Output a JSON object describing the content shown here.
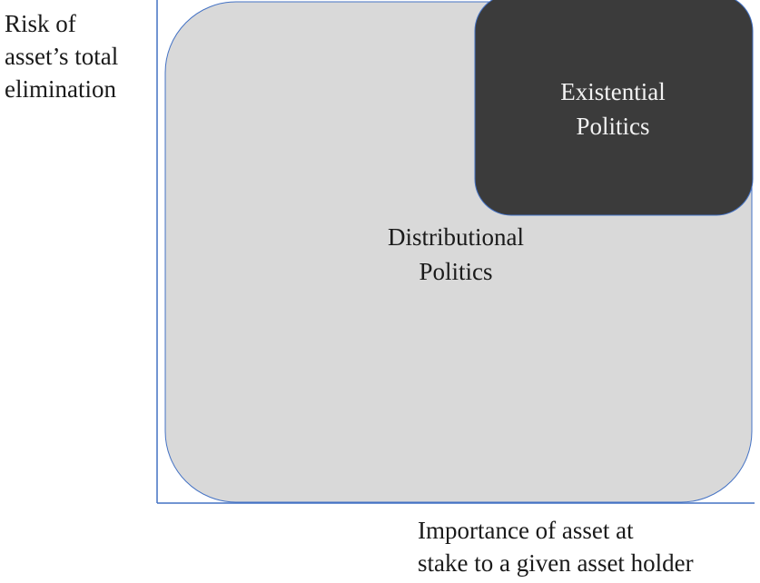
{
  "axes": {
    "y_label_lines": [
      "Risk of",
      "asset’s total",
      "elimination"
    ],
    "x_label_lines": [
      "Importance of asset at",
      "stake to a given asset holder"
    ]
  },
  "regions": {
    "distributional": {
      "lines": [
        "Distributional",
        "Politics"
      ],
      "fill": "#d9d9d9",
      "stroke": "#4472c4"
    },
    "existential": {
      "lines": [
        "Existential",
        "Politics"
      ],
      "fill": "#3b3b3b",
      "stroke": "#4472c4"
    }
  },
  "colors": {
    "axis": "#4472c4",
    "text": "#1a1a1a",
    "text_on_dark": "#f2f2f2"
  }
}
